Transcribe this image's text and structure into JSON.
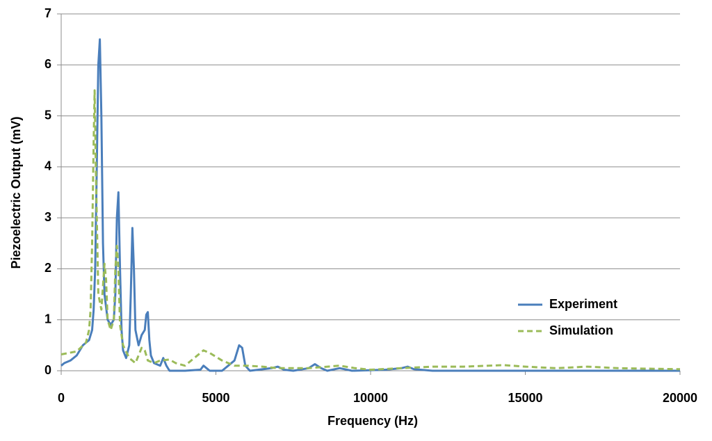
{
  "chart_data": {
    "type": "line",
    "x_label": "Frequency (Hz)",
    "y_label": "Piezoelectric Output (mV)",
    "xlim": [
      0,
      20000
    ],
    "xticks": [
      0,
      5000,
      10000,
      15000,
      20000
    ],
    "ylim": [
      0,
      7
    ],
    "yticks": [
      0,
      1,
      2,
      3,
      4,
      5,
      6,
      7
    ],
    "grid": true,
    "legend": "right",
    "series": [
      {
        "name": "Experiment",
        "color": "#4a7ebb",
        "dash": false,
        "x": [
          0,
          100,
          300,
          500,
          700,
          900,
          1000,
          1050,
          1100,
          1150,
          1200,
          1250,
          1300,
          1350,
          1400,
          1500,
          1600,
          1700,
          1750,
          1800,
          1850,
          1900,
          1950,
          2000,
          2100,
          2200,
          2250,
          2300,
          2350,
          2400,
          2500,
          2600,
          2700,
          2750,
          2800,
          2850,
          2900,
          3000,
          3200,
          3300,
          3400,
          3500,
          4000,
          4500,
          4600,
          4700,
          4800,
          5200,
          5400,
          5600,
          5750,
          5850,
          5950,
          6100,
          6800,
          7000,
          7200,
          7500,
          8000,
          8200,
          8400,
          8600,
          9000,
          9400,
          10500,
          11000,
          11200,
          11400,
          12000,
          14000,
          20000
        ],
        "values": [
          0.1,
          0.15,
          0.2,
          0.3,
          0.5,
          0.6,
          0.8,
          1.2,
          2.0,
          4.0,
          6.0,
          6.5,
          5.0,
          2.5,
          1.5,
          1.0,
          0.9,
          1.0,
          1.5,
          3.0,
          3.5,
          2.0,
          0.8,
          0.4,
          0.25,
          0.5,
          1.5,
          2.8,
          2.0,
          0.8,
          0.5,
          0.7,
          0.8,
          1.1,
          1.15,
          0.6,
          0.3,
          0.15,
          0.1,
          0.25,
          0.1,
          0.0,
          0.0,
          0.02,
          0.1,
          0.05,
          0.0,
          0.0,
          0.1,
          0.2,
          0.5,
          0.45,
          0.1,
          0.0,
          0.05,
          0.08,
          0.02,
          0.0,
          0.05,
          0.13,
          0.05,
          0.0,
          0.05,
          0.0,
          0.02,
          0.05,
          0.08,
          0.03,
          0.0,
          0.0,
          0.0
        ]
      },
      {
        "name": "Simulation",
        "color": "#9bbb59",
        "dash": true,
        "x": [
          0,
          500,
          800,
          900,
          950,
          1000,
          1050,
          1080,
          1120,
          1200,
          1300,
          1400,
          1450,
          1500,
          1600,
          1700,
          1750,
          1800,
          1850,
          1900,
          2000,
          2200,
          2400,
          2600,
          2700,
          2800,
          3000,
          3200,
          3500,
          3700,
          4000,
          4300,
          4600,
          4800,
          5200,
          5600,
          6000,
          6500,
          7000,
          8000,
          9000,
          9500,
          10000,
          11000,
          12000,
          13000,
          14300,
          15000,
          16000,
          17000,
          18000,
          20000
        ],
        "values": [
          0.32,
          0.38,
          0.55,
          0.8,
          1.2,
          2.5,
          4.5,
          5.5,
          4.0,
          1.5,
          1.2,
          2.1,
          1.8,
          1.0,
          0.8,
          1.0,
          2.0,
          2.45,
          2.0,
          0.9,
          0.5,
          0.25,
          0.15,
          0.45,
          0.4,
          0.2,
          0.15,
          0.2,
          0.22,
          0.15,
          0.1,
          0.25,
          0.4,
          0.35,
          0.2,
          0.1,
          0.1,
          0.08,
          0.05,
          0.05,
          0.1,
          0.05,
          0.02,
          0.05,
          0.08,
          0.08,
          0.11,
          0.08,
          0.05,
          0.08,
          0.05,
          0.03
        ]
      }
    ]
  }
}
